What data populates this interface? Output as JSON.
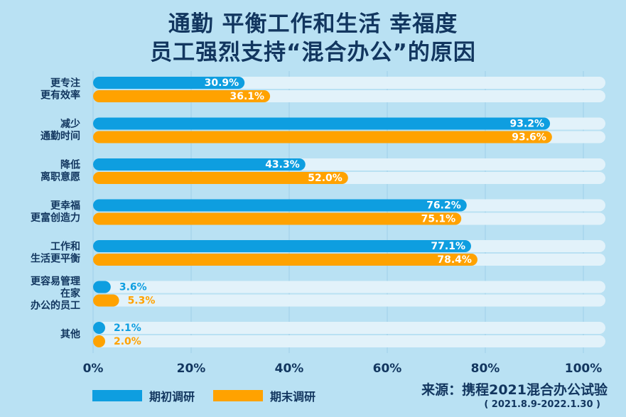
{
  "title_lines": [
    "通勤 平衡工作和生活 幸福度",
    "员工强烈支持“混合办公”的原因"
  ],
  "chart_data": {
    "type": "bar",
    "orientation": "horizontal",
    "categories": [
      [
        "更专注",
        "更有效率"
      ],
      [
        "减少",
        "通勤时间"
      ],
      [
        "降低",
        "离职意愿"
      ],
      [
        "更幸福",
        "更富创造力"
      ],
      [
        "工作和",
        "生活更平衡"
      ],
      [
        "更容易管理",
        "在家",
        "办公的员工"
      ],
      [
        "其他"
      ]
    ],
    "series": [
      {
        "name": "期初调研",
        "color": "#0e9ee0",
        "values": [
          30.9,
          93.2,
          43.3,
          76.2,
          77.1,
          3.6,
          2.1
        ],
        "labels": [
          "30.9%",
          "93.2%",
          "43.3%",
          "76.2%",
          "77.1%",
          "3.6%",
          "2.1%"
        ]
      },
      {
        "name": "期末调研",
        "color": "#ffa200",
        "values": [
          36.1,
          93.6,
          52.0,
          75.1,
          78.4,
          5.3,
          2.0
        ],
        "labels": [
          "36.1%",
          "93.6%",
          "52.0%",
          "75.1%",
          "78.4%",
          "5.3%",
          "2.0%"
        ]
      }
    ],
    "xlim": [
      0,
      105
    ],
    "xticks": [
      0,
      20,
      40,
      60,
      80,
      100
    ],
    "xtick_labels": [
      "0%",
      "20%",
      "40%",
      "60%",
      "80%",
      "100%"
    ],
    "grid": true,
    "legend_position": "bottom-left",
    "track_color": "#e2f2fa",
    "text_color": "#12365f"
  },
  "source": {
    "text": "来源：携程2021混合办公试验",
    "period": "( 2021.8.9-2022.1.30 )"
  }
}
